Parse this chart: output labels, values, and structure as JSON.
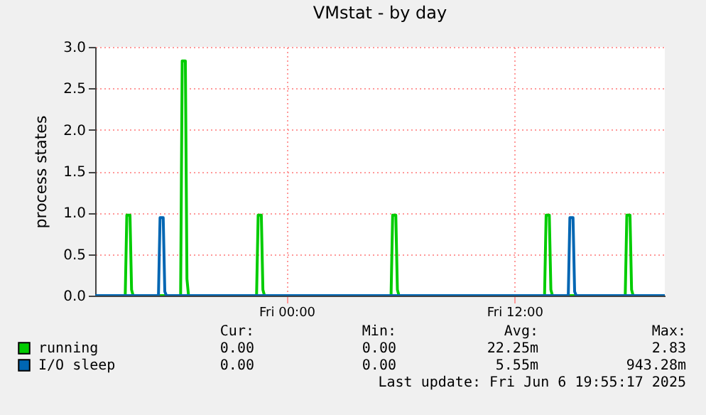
{
  "chart_data": {
    "type": "line",
    "title": "VMstat - by day",
    "ylabel": "process states",
    "xlim": [
      "2025-06-05T13:55",
      "2025-06-06T19:55"
    ],
    "xticks": [
      {
        "value": "2025-06-06T00:00",
        "label": "Fri 00:00"
      },
      {
        "value": "2025-06-06T12:00",
        "label": "Fri 12:00"
      }
    ],
    "ylim": [
      0,
      3
    ],
    "yticks": [
      {
        "value": 0,
        "label": "0.0"
      },
      {
        "value": 0.5,
        "label": "0.5"
      },
      {
        "value": 1,
        "label": "1.0"
      },
      {
        "value": 1.5,
        "label": "1.5"
      },
      {
        "value": 2,
        "label": "2.0"
      },
      {
        "value": 2.5,
        "label": "2.5"
      },
      {
        "value": 3,
        "label": "3.0"
      }
    ],
    "grid": true,
    "legend": "bottom",
    "series": [
      {
        "name": "running",
        "color": "#00cc00",
        "x": [
          "2025-06-05T13:55",
          "2025-06-05T15:30",
          "2025-06-05T15:35",
          "2025-06-05T15:45",
          "2025-06-05T15:50",
          "2025-06-05T15:55",
          "2025-06-05T18:25",
          "2025-06-05T18:30",
          "2025-06-05T18:40",
          "2025-06-05T18:45",
          "2025-06-05T18:50",
          "2025-06-05T18:55",
          "2025-06-05T22:25",
          "2025-06-05T22:30",
          "2025-06-05T22:40",
          "2025-06-05T22:45",
          "2025-06-05T22:50",
          "2025-06-06T05:30",
          "2025-06-06T05:35",
          "2025-06-06T05:45",
          "2025-06-06T05:50",
          "2025-06-06T05:55",
          "2025-06-06T13:35",
          "2025-06-06T13:40",
          "2025-06-06T13:50",
          "2025-06-06T13:55",
          "2025-06-06T14:00",
          "2025-06-06T17:50",
          "2025-06-06T17:55",
          "2025-06-06T18:05",
          "2025-06-06T18:10",
          "2025-06-06T18:15",
          "2025-06-06T19:55"
        ],
        "values": [
          0,
          0,
          0.97,
          0.97,
          0.07,
          0,
          0,
          2.83,
          2.83,
          0.2,
          0,
          0,
          0,
          0.97,
          0.97,
          0.07,
          0,
          0,
          0.97,
          0.97,
          0.07,
          0,
          0,
          0.97,
          0.97,
          0.07,
          0,
          0,
          0.97,
          0.97,
          0.07,
          0,
          0
        ]
      },
      {
        "name": "I/O sleep",
        "color": "#0066b3",
        "x": [
          "2025-06-05T13:55",
          "2025-06-05T17:15",
          "2025-06-05T17:20",
          "2025-06-05T17:30",
          "2025-06-05T17:35",
          "2025-06-05T17:40",
          "2025-06-06T14:50",
          "2025-06-06T14:55",
          "2025-06-06T15:05",
          "2025-06-06T15:10",
          "2025-06-06T15:15",
          "2025-06-06T19:55"
        ],
        "values": [
          0,
          0,
          0.94,
          0.94,
          0.05,
          0,
          0,
          0.94,
          0.94,
          0.05,
          0,
          0
        ]
      }
    ],
    "annotations": [
      "Cur:",
      "Min:",
      "Avg:",
      "Max:",
      "0.00",
      "0.00",
      "22.25m",
      "2.83",
      "0.00",
      "0.00",
      "5.55m",
      "943.28m",
      "Last update: Fri Jun  6 19:55:17 2025"
    ]
  }
}
